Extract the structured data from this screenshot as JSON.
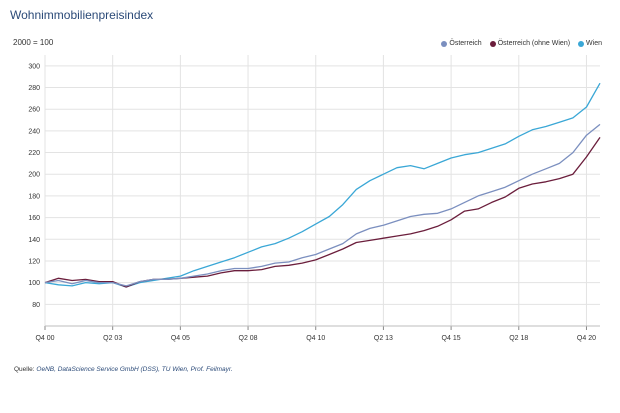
{
  "header": {
    "title": "Wohnimmobilienpreisindex",
    "unit_label": "2000 = 100"
  },
  "footer": {
    "source_label": "Quelle:",
    "source_text": "OeNB, DataScience Service GmbH (DSS), TU Wien, Prof. Feilmayr."
  },
  "chart_data": {
    "type": "line",
    "title": "Wohnimmobilienpreisindex",
    "ylabel": "2000 = 100",
    "xlabel": "",
    "ylim": [
      60,
      310
    ],
    "y_ticks": [
      80,
      100,
      120,
      140,
      160,
      180,
      200,
      220,
      240,
      260,
      280,
      300
    ],
    "x_tick_labels": [
      "Q4 00",
      "Q2 03",
      "Q4 05",
      "Q2 08",
      "Q4 10",
      "Q2 13",
      "Q4 15",
      "Q2 18",
      "Q4 20"
    ],
    "grid": true,
    "legend_position": "top-right",
    "x": [
      "Q4 00",
      "Q2 01",
      "Q4 01",
      "Q2 02",
      "Q4 02",
      "Q2 03",
      "Q4 03",
      "Q2 04",
      "Q4 04",
      "Q2 05",
      "Q4 05",
      "Q2 06",
      "Q4 06",
      "Q2 07",
      "Q4 07",
      "Q2 08",
      "Q4 08",
      "Q2 09",
      "Q4 09",
      "Q2 10",
      "Q4 10",
      "Q2 11",
      "Q4 11",
      "Q2 12",
      "Q4 12",
      "Q2 13",
      "Q4 13",
      "Q2 14",
      "Q4 14",
      "Q2 15",
      "Q4 15",
      "Q2 16",
      "Q4 16",
      "Q2 17",
      "Q4 17",
      "Q2 18",
      "Q4 18",
      "Q2 19",
      "Q4 19",
      "Q2 20",
      "Q4 20",
      "Q2 21"
    ],
    "series": [
      {
        "name": "Österreich",
        "color": "#7b8fbf",
        "values": [
          100,
          102,
          99,
          102,
          100,
          100,
          97,
          101,
          103,
          103,
          104,
          106,
          108,
          111,
          113,
          113,
          115,
          118,
          119,
          123,
          126,
          131,
          136,
          145,
          150,
          153,
          157,
          161,
          163,
          164,
          168,
          174,
          180,
          184,
          188,
          194,
          200,
          205,
          210,
          220,
          236,
          246
        ]
      },
      {
        "name": "Österreich (ohne Wien)",
        "color": "#6b1e3c",
        "values": [
          100,
          104,
          102,
          103,
          101,
          101,
          96,
          101,
          103,
          103,
          104,
          105,
          106,
          109,
          111,
          111,
          112,
          115,
          116,
          118,
          121,
          126,
          131,
          137,
          139,
          141,
          143,
          145,
          148,
          152,
          158,
          166,
          168,
          174,
          179,
          187,
          191,
          193,
          196,
          200,
          216,
          234
        ]
      },
      {
        "name": "Wien",
        "color": "#3aa7d6",
        "values": [
          100,
          98,
          97,
          100,
          99,
          100,
          96,
          100,
          102,
          104,
          106,
          111,
          115,
          119,
          123,
          128,
          133,
          136,
          141,
          147,
          154,
          161,
          172,
          186,
          194,
          200,
          206,
          208,
          205,
          210,
          215,
          218,
          220,
          224,
          228,
          235,
          241,
          244,
          248,
          252,
          262,
          284
        ]
      }
    ]
  }
}
